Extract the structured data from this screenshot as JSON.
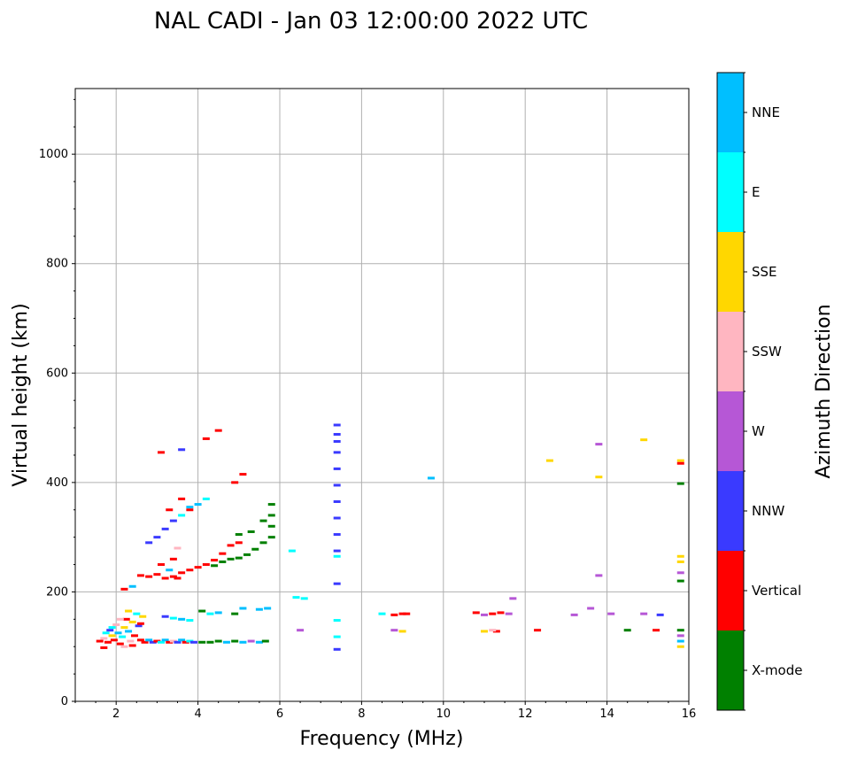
{
  "chart_data": {
    "type": "scatter",
    "title": "NAL CADI - Jan 03 12:00:00 2022 UTC",
    "xlabel": "Frequency (MHz)",
    "ylabel": "Virtual height (km)",
    "xlim": [
      1,
      16
    ],
    "ylim": [
      0,
      1120
    ],
    "xticks": [
      2,
      4,
      6,
      8,
      10,
      12,
      14,
      16
    ],
    "yticks": [
      0,
      200,
      400,
      600,
      800,
      1000
    ],
    "grid": true,
    "colorbar": {
      "label": "Azimuth Direction",
      "categories": [
        {
          "name": "X-mode",
          "color": "#008000"
        },
        {
          "name": "Vertical",
          "color": "#ff0000"
        },
        {
          "name": "NNW",
          "color": "#3a3aff"
        },
        {
          "name": "W",
          "color": "#b657d6"
        },
        {
          "name": "SSW",
          "color": "#ffb6c1"
        },
        {
          "name": "SSE",
          "color": "#ffd700"
        },
        {
          "name": "E",
          "color": "#00ffff"
        },
        {
          "name": "NNE",
          "color": "#00bfff"
        }
      ]
    },
    "points": [
      [
        1.6,
        110,
        "Vertical"
      ],
      [
        1.7,
        115,
        "SSW"
      ],
      [
        1.75,
        125,
        "E"
      ],
      [
        1.8,
        108,
        "Vertical"
      ],
      [
        1.85,
        130,
        "NNW"
      ],
      [
        1.9,
        120,
        "SSE"
      ],
      [
        1.95,
        112,
        "Vertical"
      ],
      [
        2.0,
        140,
        "SSW"
      ],
      [
        2.05,
        125,
        "NNE"
      ],
      [
        2.1,
        105,
        "Vertical"
      ],
      [
        2.15,
        118,
        "E"
      ],
      [
        2.2,
        135,
        "SSE"
      ],
      [
        2.25,
        150,
        "Vertical"
      ],
      [
        2.3,
        128,
        "NNE"
      ],
      [
        2.35,
        110,
        "SSW"
      ],
      [
        2.4,
        145,
        "SSE"
      ],
      [
        2.45,
        120,
        "Vertical"
      ],
      [
        2.5,
        160,
        "E"
      ],
      [
        2.55,
        138,
        "NNW"
      ],
      [
        2.6,
        112,
        "Vertical"
      ],
      [
        2.65,
        155,
        "SSE"
      ],
      [
        1.7,
        98,
        "Vertical"
      ],
      [
        2.2,
        100,
        "SSW"
      ],
      [
        2.4,
        102,
        "Vertical"
      ],
      [
        1.9,
        135,
        "E"
      ],
      [
        2.1,
        150,
        "SSW"
      ],
      [
        2.3,
        165,
        "SSE"
      ],
      [
        2.6,
        142,
        "Vertical"
      ],
      [
        2.7,
        108,
        "Vertical"
      ],
      [
        2.8,
        112,
        "NNE"
      ],
      [
        2.9,
        108,
        "NNW"
      ],
      [
        3.0,
        110,
        "Vertical"
      ],
      [
        3.1,
        108,
        "E"
      ],
      [
        3.2,
        112,
        "NNE"
      ],
      [
        3.3,
        108,
        "Vertical"
      ],
      [
        3.4,
        110,
        "SSW"
      ],
      [
        3.5,
        108,
        "NNW"
      ],
      [
        3.6,
        112,
        "NNE"
      ],
      [
        3.7,
        108,
        "Vertical"
      ],
      [
        3.8,
        110,
        "E"
      ],
      [
        3.9,
        108,
        "NNW"
      ],
      [
        4.1,
        108,
        "X-mode"
      ],
      [
        4.3,
        108,
        "X-mode"
      ],
      [
        4.5,
        110,
        "X-mode"
      ],
      [
        4.7,
        108,
        "NNE"
      ],
      [
        4.9,
        110,
        "X-mode"
      ],
      [
        5.1,
        108,
        "NNE"
      ],
      [
        5.3,
        110,
        "W"
      ],
      [
        5.5,
        108,
        "NNE"
      ],
      [
        5.65,
        110,
        "X-mode"
      ],
      [
        3.2,
        155,
        "NNW"
      ],
      [
        3.4,
        152,
        "E"
      ],
      [
        3.6,
        150,
        "NNE"
      ],
      [
        3.8,
        148,
        "E"
      ],
      [
        4.1,
        165,
        "X-mode"
      ],
      [
        4.3,
        160,
        "E"
      ],
      [
        4.5,
        162,
        "NNE"
      ],
      [
        4.9,
        160,
        "X-mode"
      ],
      [
        5.1,
        170,
        "NNE"
      ],
      [
        5.5,
        168,
        "NNE"
      ],
      [
        5.7,
        170,
        "NNE"
      ],
      [
        2.2,
        205,
        "Vertical"
      ],
      [
        2.4,
        210,
        "NNE"
      ],
      [
        2.6,
        230,
        "Vertical"
      ],
      [
        2.8,
        228,
        "Vertical"
      ],
      [
        3.0,
        232,
        "Vertical"
      ],
      [
        3.2,
        225,
        "Vertical"
      ],
      [
        3.4,
        228,
        "Vertical"
      ],
      [
        3.6,
        235,
        "Vertical"
      ],
      [
        3.8,
        240,
        "Vertical"
      ],
      [
        4.0,
        245,
        "Vertical"
      ],
      [
        4.2,
        250,
        "Vertical"
      ],
      [
        4.4,
        258,
        "Vertical"
      ],
      [
        4.6,
        270,
        "Vertical"
      ],
      [
        4.8,
        285,
        "Vertical"
      ],
      [
        5.0,
        290,
        "Vertical"
      ],
      [
        3.1,
        250,
        "Vertical"
      ],
      [
        3.3,
        240,
        "NNE"
      ],
      [
        3.5,
        225,
        "Vertical"
      ],
      [
        2.8,
        290,
        "NNW"
      ],
      [
        3.0,
        300,
        "NNW"
      ],
      [
        3.2,
        315,
        "NNW"
      ],
      [
        3.4,
        330,
        "NNW"
      ],
      [
        3.6,
        340,
        "E"
      ],
      [
        3.8,
        355,
        "NNE"
      ],
      [
        4.0,
        360,
        "NNE"
      ],
      [
        4.2,
        370,
        "E"
      ],
      [
        3.3,
        350,
        "Vertical"
      ],
      [
        3.6,
        370,
        "Vertical"
      ],
      [
        3.8,
        350,
        "Vertical"
      ],
      [
        4.4,
        248,
        "X-mode"
      ],
      [
        4.6,
        255,
        "X-mode"
      ],
      [
        4.8,
        260,
        "X-mode"
      ],
      [
        5.0,
        262,
        "X-mode"
      ],
      [
        5.2,
        268,
        "X-mode"
      ],
      [
        5.4,
        278,
        "X-mode"
      ],
      [
        5.6,
        290,
        "X-mode"
      ],
      [
        5.8,
        300,
        "X-mode"
      ],
      [
        5.8,
        320,
        "X-mode"
      ],
      [
        5.8,
        340,
        "X-mode"
      ],
      [
        5.8,
        360,
        "X-mode"
      ],
      [
        5.6,
        330,
        "X-mode"
      ],
      [
        5.3,
        310,
        "X-mode"
      ],
      [
        5.0,
        305,
        "X-mode"
      ],
      [
        4.9,
        400,
        "Vertical"
      ],
      [
        3.1,
        455,
        "Vertical"
      ],
      [
        3.6,
        460,
        "NNW"
      ],
      [
        4.2,
        480,
        "Vertical"
      ],
      [
        4.5,
        495,
        "Vertical"
      ],
      [
        5.1,
        415,
        "Vertical"
      ],
      [
        3.4,
        260,
        "Vertical"
      ],
      [
        3.5,
        280,
        "SSW"
      ],
      [
        6.3,
        275,
        "E"
      ],
      [
        6.4,
        190,
        "E"
      ],
      [
        6.6,
        188,
        "E"
      ],
      [
        6.5,
        130,
        "W"
      ],
      [
        7.4,
        505,
        "NNW"
      ],
      [
        7.4,
        488,
        "NNW"
      ],
      [
        7.4,
        475,
        "NNW"
      ],
      [
        7.4,
        455,
        "NNW"
      ],
      [
        7.4,
        425,
        "NNW"
      ],
      [
        7.4,
        395,
        "NNW"
      ],
      [
        7.4,
        365,
        "NNW"
      ],
      [
        7.4,
        335,
        "NNW"
      ],
      [
        7.4,
        305,
        "NNW"
      ],
      [
        7.4,
        275,
        "NNW"
      ],
      [
        7.4,
        265,
        "E"
      ],
      [
        7.4,
        215,
        "NNW"
      ],
      [
        7.4,
        148,
        "E"
      ],
      [
        7.4,
        118,
        "E"
      ],
      [
        7.4,
        95,
        "NNW"
      ],
      [
        8.5,
        160,
        "E"
      ],
      [
        8.8,
        158,
        "Vertical"
      ],
      [
        9.0,
        160,
        "Vertical"
      ],
      [
        9.1,
        160,
        "Vertical"
      ],
      [
        8.8,
        130,
        "W"
      ],
      [
        9.0,
        128,
        "SSE"
      ],
      [
        9.7,
        408,
        "NNE"
      ],
      [
        10.8,
        162,
        "Vertical"
      ],
      [
        11.0,
        158,
        "W"
      ],
      [
        11.2,
        160,
        "Vertical"
      ],
      [
        11.4,
        162,
        "Vertical"
      ],
      [
        11.6,
        160,
        "W"
      ],
      [
        11.0,
        128,
        "SSE"
      ],
      [
        11.3,
        128,
        "Vertical"
      ],
      [
        11.7,
        188,
        "W"
      ],
      [
        11.2,
        130,
        "SSW"
      ],
      [
        12.3,
        130,
        "Vertical"
      ],
      [
        12.6,
        440,
        "SSE"
      ],
      [
        13.2,
        158,
        "W"
      ],
      [
        13.6,
        170,
        "W"
      ],
      [
        13.8,
        230,
        "W"
      ],
      [
        13.8,
        410,
        "SSE"
      ],
      [
        13.8,
        470,
        "W"
      ],
      [
        14.1,
        160,
        "W"
      ],
      [
        14.5,
        130,
        "X-mode"
      ],
      [
        14.9,
        160,
        "W"
      ],
      [
        14.9,
        478,
        "SSE"
      ],
      [
        15.3,
        158,
        "NNW"
      ],
      [
        15.2,
        130,
        "Vertical"
      ],
      [
        15.8,
        440,
        "SSE"
      ],
      [
        15.8,
        435,
        "Vertical"
      ],
      [
        15.8,
        398,
        "X-mode"
      ],
      [
        15.8,
        265,
        "SSE"
      ],
      [
        15.8,
        255,
        "SSE"
      ],
      [
        15.8,
        235,
        "W"
      ],
      [
        15.8,
        220,
        "X-mode"
      ],
      [
        15.8,
        130,
        "X-mode"
      ],
      [
        15.8,
        120,
        "W"
      ],
      [
        15.8,
        110,
        "NNE"
      ],
      [
        15.8,
        100,
        "SSE"
      ]
    ]
  }
}
